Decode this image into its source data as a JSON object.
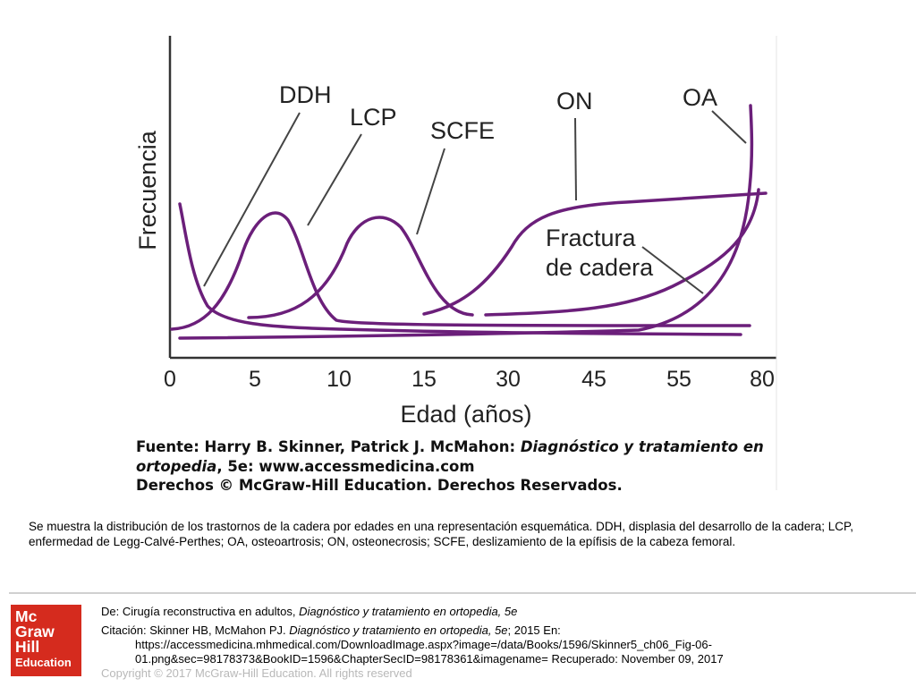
{
  "chart_data": {
    "type": "line",
    "ylabel": "Frecuencia",
    "xlabel": "Edad (años)",
    "x_ticks": [
      "0",
      "5",
      "10",
      "15",
      "30",
      "45",
      "55",
      "80"
    ],
    "series": [
      {
        "name": "DDH"
      },
      {
        "name": "LCP"
      },
      {
        "name": "SCFE"
      },
      {
        "name": "ON"
      },
      {
        "name": "OA"
      },
      {
        "name": "Fractura de cadera"
      }
    ],
    "label_lines": {
      "fractura_1": "Fractura",
      "fractura_2": "de cadera"
    },
    "grid": false,
    "line_color": "#6b1f7a"
  },
  "source": {
    "line1_prefix": "Fuente: Harry B. Skinner, Patrick J. McMahon: ",
    "line1_italic": "Diagnóstico y tratamiento en",
    "line2_italic": "ortopedia",
    "line2_rest": ", 5e: www.accessmedicina.com",
    "line3": "Derechos © McGraw-Hill Education. Derechos Reservados."
  },
  "caption": {
    "line1": "Se muestra la distribución de los trastornos de la cadera por edades en una representación esquemática. DDH, displasia del desarrollo de la cadera; LCP,",
    "line2": "enfermedad de Legg-Calvé-Perthes; OA, osteoartrosis; ON, osteonecrosis; SCFE, deslizamiento de la epífisis de la cabeza femoral."
  },
  "logo": {
    "l1": "Mc",
    "l2": "Graw",
    "l3": "Hill",
    "l4": "Education"
  },
  "footer": {
    "from_prefix": "De: Cirugía reconstructiva en adultos, ",
    "from_book": "Diagnóstico y tratamiento en ortopedia, 5e",
    "cite_prefix": "Citación: Skinner HB, McMahon PJ. ",
    "cite_book": "Diagnóstico y tratamiento en ortopedia, 5e",
    "cite_rest": "; 2015 En:",
    "url1": "https://accessmedicina.mhmedical.com/DownloadImage.aspx?image=/data/Books/1596/Skinner5_ch06_Fig-06-",
    "url2": "01.png&sec=98178373&BookID=1596&ChapterSecID=98178361&imagename= Recuperado: November 09, 2017",
    "copyright": "Copyright © 2017 McGraw-Hill Education. All rights reserved"
  }
}
